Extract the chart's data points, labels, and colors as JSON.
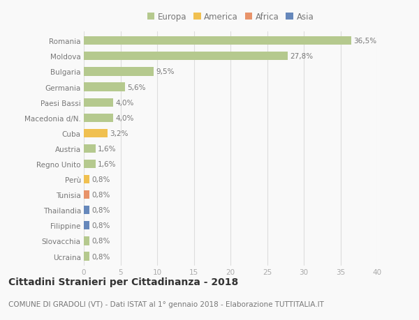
{
  "categories": [
    "Romania",
    "Moldova",
    "Bulgaria",
    "Germania",
    "Paesi Bassi",
    "Macedonia d/N.",
    "Cuba",
    "Austria",
    "Regno Unito",
    "Perù",
    "Tunisia",
    "Thailandia",
    "Filippine",
    "Slovacchia",
    "Ucraina"
  ],
  "values": [
    36.5,
    27.8,
    9.5,
    5.6,
    4.0,
    4.0,
    3.2,
    1.6,
    1.6,
    0.8,
    0.8,
    0.8,
    0.8,
    0.8,
    0.8
  ],
  "labels": [
    "36,5%",
    "27,8%",
    "9,5%",
    "5,6%",
    "4,0%",
    "4,0%",
    "3,2%",
    "1,6%",
    "1,6%",
    "0,8%",
    "0,8%",
    "0,8%",
    "0,8%",
    "0,8%",
    "0,8%"
  ],
  "continents": [
    "Europa",
    "Europa",
    "Europa",
    "Europa",
    "Europa",
    "Europa",
    "America",
    "Europa",
    "Europa",
    "America",
    "Africa",
    "Asia",
    "Asia",
    "Europa",
    "Europa"
  ],
  "colors": {
    "Europa": "#b5c98e",
    "America": "#f0c050",
    "Africa": "#e8936a",
    "Asia": "#6688bb"
  },
  "legend_order": [
    "Europa",
    "America",
    "Africa",
    "Asia"
  ],
  "legend_colors": [
    "#b5c98e",
    "#f0c050",
    "#e8936a",
    "#6688bb"
  ],
  "xlim": [
    0,
    40
  ],
  "xticks": [
    0,
    5,
    10,
    15,
    20,
    25,
    30,
    35,
    40
  ],
  "title": "Cittadini Stranieri per Cittadinanza - 2018",
  "subtitle": "COMUNE DI GRADOLI (VT) - Dati ISTAT al 1° gennaio 2018 - Elaborazione TUTTITALIA.IT",
  "background_color": "#f9f9f9",
  "grid_color": "#dddddd",
  "bar_height": 0.55,
  "label_fontsize": 7.5,
  "ytick_fontsize": 7.5,
  "xtick_fontsize": 7.5,
  "legend_fontsize": 8.5,
  "title_fontsize": 10,
  "subtitle_fontsize": 7.5
}
